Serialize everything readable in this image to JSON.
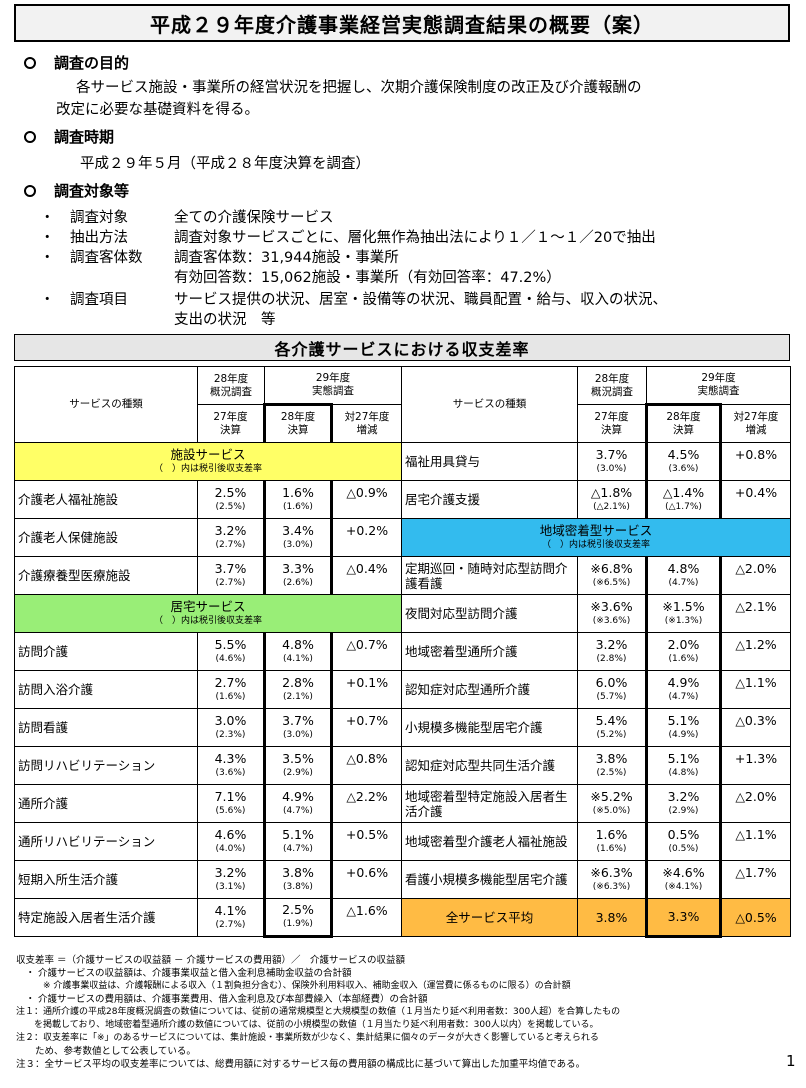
{
  "title": "平成２９年度介護事業経営実態調査結果の概要（案）",
  "purpose": {
    "heading": "調査の目的",
    "line1": "各サービス施設・事業所の経営状況を把握し、次期介護保険制度の改正及び介護報酬の",
    "line2": "改定に必要な基礎資料を得る。"
  },
  "period": {
    "heading": "調査時期",
    "line1": "平成２９年５月（平成２８年度決算を調査）"
  },
  "targets": {
    "heading": "調査対象等",
    "items": [
      {
        "bullet": "・",
        "label": "調査対象",
        "text": "全ての介護保険サービス"
      },
      {
        "bullet": "・",
        "label": "抽出方法",
        "text": "調査対象サービスごとに、層化無作為抽出法により１／１～１／20で抽出"
      },
      {
        "bullet": "・",
        "label": "調査客体数",
        "text": "調査客体数：31,944施設・事業所"
      },
      {
        "bullet": "",
        "label": "",
        "text": "有効回答数：15,062施設・事業所（有効回答率：47.2%）"
      },
      {
        "bullet": "・",
        "label": "調査項目",
        "text": "サービス提供の状況、居室・設備等の状況、職員配置・給与、収入の状況、"
      },
      {
        "bullet": "",
        "label": "",
        "text": "支出の状況　等"
      }
    ]
  },
  "table": {
    "title": "各介護サービスにおける収支差率",
    "headers": {
      "service_type": "サービスの種類",
      "h28": "28年度\n概況調査",
      "h29": "29年度\n実態調査",
      "fy27": "27年度\n決算",
      "fy28": "28年度\n決算",
      "change": "対27年度\n増減"
    },
    "categories": {
      "facility": {
        "name": "施設サービス",
        "note": "（　）内は税引後収支差率"
      },
      "home": {
        "name": "居宅サービス",
        "note": "（　）内は税引後収支差率"
      },
      "community": {
        "name": "地域密着型サービス",
        "note": "（　）内は税引後収支差率"
      }
    },
    "left_rows": [
      {
        "name": "介護老人福祉施設",
        "fy27": "2.5%",
        "fy27s": "(2.5%)",
        "fy28": "1.6%",
        "fy28s": "(1.6%)",
        "change": "△0.9%"
      },
      {
        "name": "介護老人保健施設",
        "fy27": "3.2%",
        "fy27s": "(2.7%)",
        "fy28": "3.4%",
        "fy28s": "(3.0%)",
        "change": "+0.2%"
      },
      {
        "name": "介護療養型医療施設",
        "fy27": "3.7%",
        "fy27s": "(2.7%)",
        "fy28": "3.3%",
        "fy28s": "(2.6%)",
        "change": "△0.4%"
      },
      {
        "name": "訪問介護",
        "fy27": "5.5%",
        "fy27s": "(4.6%)",
        "fy28": "4.8%",
        "fy28s": "(4.1%)",
        "change": "△0.7%"
      },
      {
        "name": "訪問入浴介護",
        "fy27": "2.7%",
        "fy27s": "(1.6%)",
        "fy28": "2.8%",
        "fy28s": "(2.1%)",
        "change": "+0.1%"
      },
      {
        "name": "訪問看護",
        "fy27": "3.0%",
        "fy27s": "(2.3%)",
        "fy28": "3.7%",
        "fy28s": "(3.0%)",
        "change": "+0.7%"
      },
      {
        "name": "訪問リハビリテーション",
        "fy27": "4.3%",
        "fy27s": "(3.6%)",
        "fy28": "3.5%",
        "fy28s": "(2.9%)",
        "change": "△0.8%"
      },
      {
        "name": "通所介護",
        "fy27": "7.1%",
        "fy27s": "(5.6%)",
        "fy28": "4.9%",
        "fy28s": "(4.7%)",
        "change": "△2.2%"
      },
      {
        "name": "通所リハビリテーション",
        "fy27": "4.6%",
        "fy27s": "(4.0%)",
        "fy28": "5.1%",
        "fy28s": "(4.7%)",
        "change": "+0.5%"
      },
      {
        "name": "短期入所生活介護",
        "fy27": "3.2%",
        "fy27s": "(3.1%)",
        "fy28": "3.8%",
        "fy28s": "(3.8%)",
        "change": "+0.6%"
      },
      {
        "name": "特定施設入居者生活介護",
        "fy27": "4.1%",
        "fy27s": "(2.7%)",
        "fy28": "2.5%",
        "fy28s": "(1.9%)",
        "change": "△1.6%"
      }
    ],
    "right_rows": [
      {
        "name": "福祉用具貸与",
        "fy27": "3.7%",
        "fy27s": "(3.0%)",
        "fy28": "4.5%",
        "fy28s": "(3.6%)",
        "change": "+0.8%"
      },
      {
        "name": "居宅介護支援",
        "fy27": "△1.8%",
        "fy27s": "(△2.1%)",
        "fy28": "△1.4%",
        "fy28s": "(△1.7%)",
        "change": "+0.4%"
      },
      {
        "name": "定期巡回・随時対応型訪問介護看護",
        "fy27": "※6.8%",
        "fy27s": "(※6.5%)",
        "fy28": "4.8%",
        "fy28s": "(4.7%)",
        "change": "△2.0%"
      },
      {
        "name": "夜間対応型訪問介護",
        "fy27": "※3.6%",
        "fy27s": "(※3.6%)",
        "fy28": "※1.5%",
        "fy28s": "(※1.3%)",
        "change": "△2.1%"
      },
      {
        "name": "地域密着型通所介護",
        "fy27": "3.2%",
        "fy27s": "(2.8%)",
        "fy28": "2.0%",
        "fy28s": "(1.6%)",
        "change": "△1.2%"
      },
      {
        "name": "認知症対応型通所介護",
        "fy27": "6.0%",
        "fy27s": "(5.7%)",
        "fy28": "4.9%",
        "fy28s": "(4.7%)",
        "change": "△1.1%"
      },
      {
        "name": "小規模多機能型居宅介護",
        "fy27": "5.4%",
        "fy27s": "(5.2%)",
        "fy28": "5.1%",
        "fy28s": "(4.9%)",
        "change": "△0.3%"
      },
      {
        "name": "認知症対応型共同生活介護",
        "fy27": "3.8%",
        "fy27s": "(2.5%)",
        "fy28": "5.1%",
        "fy28s": "(4.8%)",
        "change": "+1.3%"
      },
      {
        "name": "地域密着型特定施設入居者生活介護",
        "fy27": "※5.2%",
        "fy27s": "(※5.0%)",
        "fy28": "3.2%",
        "fy28s": "(2.9%)",
        "change": "△2.0%"
      },
      {
        "name": "地域密着型介護老人福祉施設",
        "fy27": "1.6%",
        "fy27s": "(1.6%)",
        "fy28": "0.5%",
        "fy28s": "(0.5%)",
        "change": "△1.1%"
      },
      {
        "name": "看護小規模多機能型居宅介護",
        "fy27": "※6.3%",
        "fy27s": "(※6.3%)",
        "fy28": "※4.6%",
        "fy28s": "(※4.1%)",
        "change": "△1.7%"
      }
    ],
    "average": {
      "name": "全サービス平均",
      "fy27": "3.8%",
      "fy28": "3.3%",
      "change": "△0.5%"
    }
  },
  "notes": [
    "収支差率 ＝（介護サービスの収益額 － 介護サービスの費用額）／　介護サービスの収益額",
    "　・ 介護サービスの収益額は、介護事業収益と借入金利息補助金収益の合計額",
    "　　　※ 介護事業収益は、介護報酬による収入（１割負担分含む）、保険外利用料収入、補助金収入（運営費に係るものに限る）の合計額",
    "　・ 介護サービスの費用額は、介護事業費用、借入金利息及び本部費繰入（本部経費）の合計額",
    "注１：通所介護の平成28年度概況調査の数値については、従前の通常規模型と大規模型の数値（１月当たり延べ利用者数：300人超）を合算したもの",
    "　　を掲載しており、地域密着型通所介護の数値については、従前の小規模型の数値（１月当たり延べ利用者数：300人以内）を掲載している。",
    "注２：収支差率に「※」のあるサービスについては、集計施設・事業所数が少なく、集計結果に個々のデータが大きく影響していると考えられる",
    "　　ため、参考数値として公表している。",
    "注３：全サービス平均の収支差率については、総費用額に対するサービス毎の費用額の構成比に基づいて算出した加重平均値である。"
  ],
  "page_number": "1"
}
